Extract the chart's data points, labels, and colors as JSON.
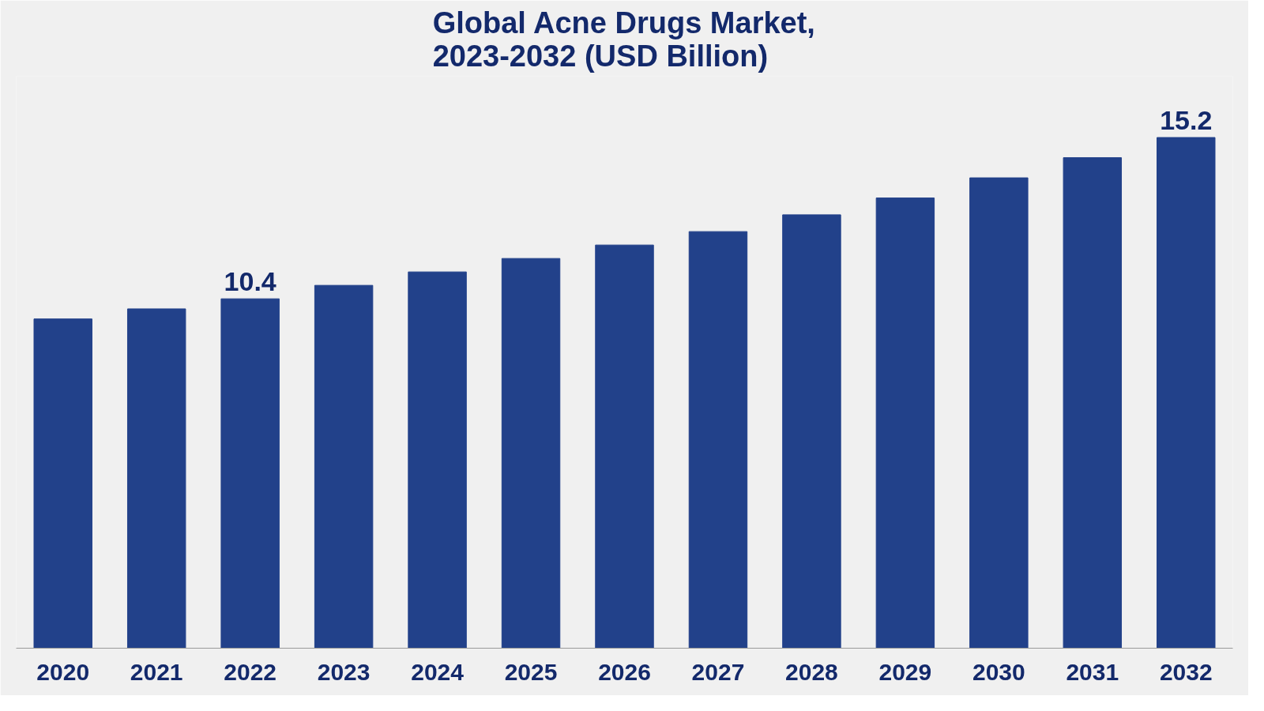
{
  "chart_data": {
    "type": "bar",
    "title": "Global Acne Drugs Market,\n2023-2032 (USD Billion)",
    "categories": [
      "2020",
      "2021",
      "2022",
      "2023",
      "2024",
      "2025",
      "2026",
      "2027",
      "2028",
      "2029",
      "2030",
      "2031",
      "2032"
    ],
    "values": [
      9.8,
      10.1,
      10.4,
      10.8,
      11.2,
      11.6,
      12.0,
      12.4,
      12.9,
      13.4,
      14.0,
      14.6,
      15.2
    ],
    "value_labels": [
      null,
      null,
      "10.4",
      null,
      null,
      null,
      null,
      null,
      null,
      null,
      null,
      null,
      "15.2"
    ],
    "color": "#22418a",
    "grid": false
  }
}
